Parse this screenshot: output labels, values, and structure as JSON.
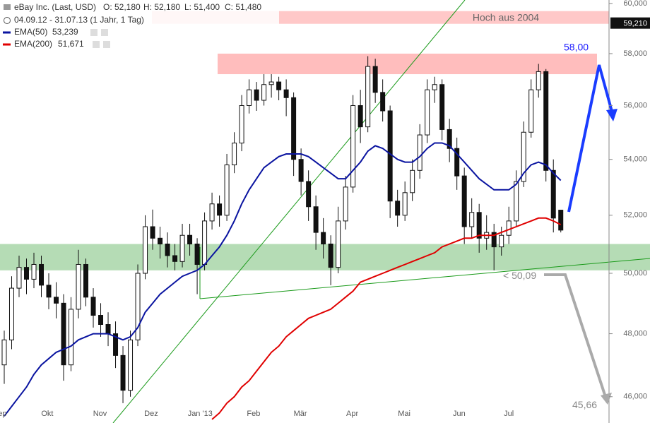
{
  "chart_data": {
    "type": "candlestick",
    "title": "eBay Inc. (Last, USD)",
    "ohlc_labels": [
      "O: 52,180",
      "H: 52,180",
      "L: 51,400",
      "C: 51,480"
    ],
    "period": "04.09.12 - 31.07.13 (1 Jahr, 1 Tag)",
    "log_scale": true,
    "ylim": [
      45.19,
      60.14
    ],
    "yticks": [
      {
        "value": 46,
        "label": "46,000"
      },
      {
        "value": 48,
        "label": "48,000"
      },
      {
        "value": 50,
        "label": "50,000"
      },
      {
        "value": 52,
        "label": "52,000"
      },
      {
        "value": 54,
        "label": "54,000"
      },
      {
        "value": 56,
        "label": "56,000"
      },
      {
        "value": 58,
        "label": "58,000"
      },
      {
        "value": 60,
        "label": "60,000"
      }
    ],
    "xlim": [
      -0.57,
      81.5
    ],
    "xticks": [
      {
        "value": -0.6,
        "label": "Sep"
      },
      {
        "value": 5.8,
        "label": "Okt"
      },
      {
        "value": 12.9,
        "label": "Nov"
      },
      {
        "value": 19.8,
        "label": "Dez"
      },
      {
        "value": 26.4,
        "label": "Jan '13"
      },
      {
        "value": 33.6,
        "label": "Feb"
      },
      {
        "value": 39.9,
        "label": "Mär"
      },
      {
        "value": 46.9,
        "label": "Apr"
      },
      {
        "value": 53.9,
        "label": "Mai"
      },
      {
        "value": 61.3,
        "label": "Jun"
      },
      {
        "value": 68,
        "label": "Jul"
      }
    ],
    "open": [
      47.0,
      47.8,
      49.5,
      50.2,
      49.8,
      50.3,
      49.6,
      49.2,
      49.0,
      47.0,
      48.8,
      50.3,
      49.2,
      48.6,
      48.3,
      48.0,
      47.3,
      46.2,
      47.8,
      50.0,
      51.6,
      51.2,
      51.0,
      50.6,
      50.4,
      51.3,
      51.0,
      50.3,
      51.8,
      52.4,
      52.0,
      53.8,
      54.6,
      56.0,
      56.6,
      56.2,
      56.8,
      56.9,
      56.6,
      56.3,
      54.0,
      53.2,
      52.3,
      51.4,
      51.0,
      50.2,
      51.8,
      53.0,
      56.0,
      55.2,
      57.5,
      56.5,
      55.8,
      52.5,
      52.0,
      52.8,
      53.6,
      54.9,
      56.6,
      56.8,
      55.1,
      54.4,
      53.4,
      51.6,
      52.1,
      51.2,
      51.4,
      50.9,
      51.3,
      51.8,
      53.2,
      55.0,
      56.6,
      57.3,
      53.6,
      52.18
    ],
    "high": [
      48.1,
      49.9,
      50.6,
      50.5,
      50.7,
      50.6,
      50.0,
      49.7,
      49.3,
      49.2,
      50.8,
      50.5,
      49.5,
      49.0,
      48.7,
      48.4,
      47.6,
      48.1,
      50.3,
      52.0,
      52.2,
      51.6,
      51.4,
      51.0,
      51.7,
      51.7,
      51.2,
      52.1,
      52.8,
      52.7,
      54.2,
      55.0,
      56.4,
      57.0,
      56.9,
      57.2,
      57.2,
      57.1,
      57.0,
      56.5,
      54.4,
      53.6,
      52.7,
      51.9,
      51.3,
      52.3,
      53.4,
      56.4,
      56.6,
      57.9,
      57.8,
      57.0,
      56.0,
      52.9,
      53.2,
      54.0,
      55.3,
      57.0,
      57.1,
      57.0,
      55.5,
      54.8,
      53.7,
      52.6,
      52.4,
      52.0,
      51.7,
      51.6,
      52.3,
      53.6,
      55.4,
      57.0,
      57.6,
      57.4,
      54.0,
      52.18
    ],
    "low": [
      46.4,
      47.5,
      49.2,
      49.3,
      49.5,
      49.2,
      48.8,
      48.5,
      46.5,
      46.8,
      48.5,
      48.9,
      48.2,
      47.9,
      47.6,
      46.9,
      45.8,
      46.0,
      47.6,
      49.8,
      50.8,
      50.5,
      50.2,
      50.1,
      50.2,
      50.6,
      49.3,
      50.1,
      51.5,
      51.6,
      51.8,
      53.5,
      54.3,
      55.7,
      55.8,
      56.0,
      56.3,
      56.2,
      55.6,
      53.4,
      52.7,
      51.8,
      50.8,
      50.5,
      49.6,
      50.0,
      51.5,
      52.8,
      54.6,
      55.0,
      56.1,
      55.4,
      51.9,
      51.6,
      51.8,
      52.5,
      53.3,
      54.6,
      56.1,
      54.7,
      53.9,
      52.9,
      51.0,
      51.2,
      50.7,
      50.8,
      50.1,
      50.6,
      51.0,
      51.6,
      53.0,
      54.8,
      56.3,
      53.2,
      51.4,
      51.4
    ],
    "close": [
      47.8,
      49.5,
      50.2,
      49.8,
      50.3,
      49.6,
      49.2,
      49.0,
      47.0,
      48.8,
      50.3,
      49.2,
      48.6,
      48.3,
      48.0,
      47.3,
      46.2,
      47.8,
      50.0,
      51.6,
      51.2,
      51.0,
      50.6,
      50.4,
      51.3,
      51.0,
      50.3,
      51.8,
      52.4,
      52.0,
      53.8,
      54.6,
      56.0,
      56.6,
      56.2,
      56.8,
      56.9,
      56.6,
      56.3,
      54.0,
      53.2,
      52.3,
      51.4,
      51.0,
      50.2,
      51.8,
      53.0,
      56.0,
      55.2,
      57.5,
      56.5,
      55.8,
      52.5,
      52.0,
      52.8,
      53.6,
      54.9,
      56.6,
      56.8,
      55.1,
      54.4,
      53.4,
      51.6,
      52.1,
      51.2,
      51.4,
      50.9,
      51.3,
      51.8,
      53.2,
      55.0,
      56.6,
      57.3,
      53.6,
      51.9,
      51.48
    ],
    "series": [
      {
        "name": "EMA(50)",
        "color": "#0a14a0",
        "value_label": "53,239",
        "values": [
          45.4,
          45.7,
          46.0,
          46.3,
          46.7,
          47.0,
          47.2,
          47.4,
          47.5,
          47.6,
          47.8,
          47.9,
          48.0,
          48.0,
          48.0,
          47.9,
          47.8,
          47.9,
          48.2,
          48.7,
          49.0,
          49.3,
          49.5,
          49.7,
          49.9,
          50.0,
          50.1,
          50.3,
          50.6,
          50.9,
          51.3,
          51.8,
          52.4,
          52.9,
          53.3,
          53.7,
          53.9,
          54.1,
          54.2,
          54.2,
          54.2,
          54.1,
          53.9,
          53.7,
          53.5,
          53.3,
          53.3,
          53.6,
          53.9,
          54.3,
          54.5,
          54.4,
          54.2,
          54.0,
          53.9,
          53.9,
          54.1,
          54.4,
          54.6,
          54.6,
          54.5,
          54.2,
          53.9,
          53.6,
          53.3,
          53.1,
          52.9,
          52.9,
          52.9,
          53.1,
          53.5,
          53.8,
          53.9,
          53.8,
          53.5,
          53.239
        ]
      },
      {
        "name": "EMA(200)",
        "color": "#e00000",
        "value_label": "51,671",
        "values": [
          null,
          null,
          null,
          null,
          null,
          null,
          null,
          null,
          null,
          null,
          null,
          null,
          null,
          null,
          null,
          null,
          null,
          null,
          null,
          null,
          null,
          null,
          null,
          null,
          null,
          null,
          null,
          null,
          45.3,
          45.5,
          45.8,
          46.0,
          46.3,
          46.5,
          46.8,
          47.1,
          47.4,
          47.6,
          47.9,
          48.1,
          48.3,
          48.5,
          48.6,
          48.7,
          48.8,
          49.0,
          49.2,
          49.4,
          49.7,
          49.8,
          49.9,
          50.0,
          50.1,
          50.2,
          50.3,
          50.4,
          50.5,
          50.6,
          50.7,
          50.9,
          51.0,
          51.1,
          51.2,
          51.2,
          51.3,
          51.3,
          51.3,
          51.4,
          51.5,
          51.6,
          51.7,
          51.8,
          51.9,
          51.9,
          51.8,
          51.671
        ]
      }
    ],
    "zones": [
      {
        "from": 57.2,
        "to": 58.0,
        "color": "#ffbdbd"
      },
      {
        "from": 50.1,
        "to": 51.0,
        "color": "#b5dcb5"
      },
      {
        "from": 59.18,
        "to": 59.69,
        "color": "#ffc8c8",
        "label": "Hoch aus 2004"
      }
    ],
    "last_price": {
      "value": 59.21,
      "label": "59,210"
    },
    "annotations": [
      {
        "value": 58,
        "label": "58,00",
        "color": "#1a1aff"
      },
      {
        "value": 50.09,
        "label": "< 50,09",
        "color": "#888888"
      },
      {
        "value": 45.66,
        "label": "45,66",
        "color": "#888888"
      }
    ]
  }
}
